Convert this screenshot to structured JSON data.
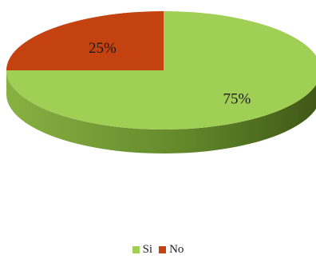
{
  "chart_data": {
    "type": "pie",
    "categories": [
      "Si",
      "No"
    ],
    "values": [
      75,
      25
    ],
    "value_labels": [
      "75%",
      "25%"
    ],
    "colors": [
      "#a0cf56",
      "#c4420f"
    ],
    "style": "3d",
    "legend_position": "bottom"
  },
  "legend": {
    "items": [
      {
        "label": "Si",
        "color": "#a0cf56"
      },
      {
        "label": "No",
        "color": "#c4420f"
      }
    ]
  }
}
